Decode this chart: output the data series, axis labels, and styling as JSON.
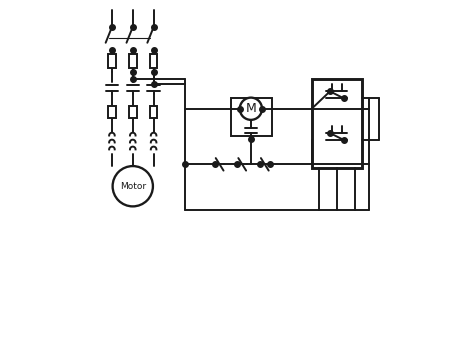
{
  "bg_color": "#ffffff",
  "line_color": "#1a1a1a",
  "line_width": 1.4,
  "dot_size": 4,
  "figsize": [
    4.74,
    3.53
  ],
  "dpi": 100
}
